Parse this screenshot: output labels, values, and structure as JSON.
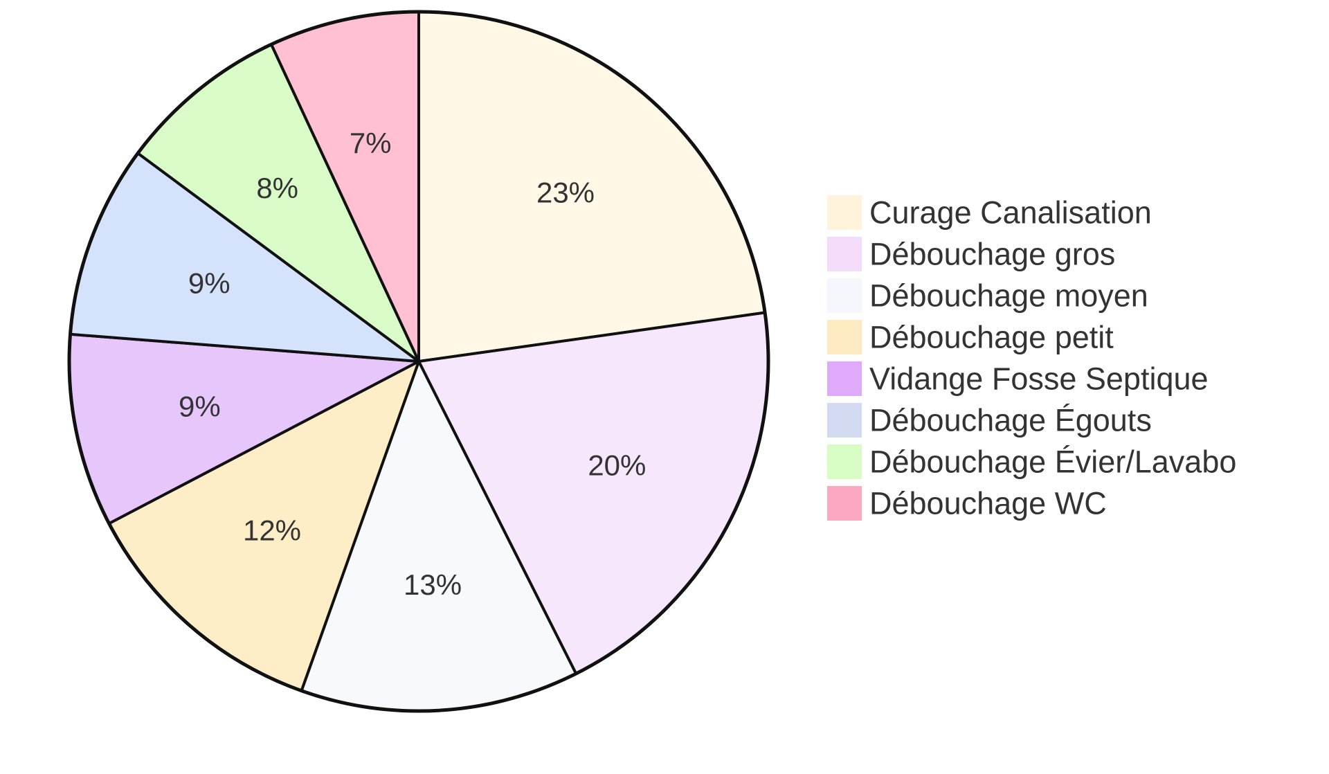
{
  "chart_data": {
    "type": "pie",
    "title": "",
    "legend_position": "right",
    "start_angle": "12 o'clock",
    "direction": "clockwise",
    "slices": [
      {
        "name": "Curage Canalisation",
        "value": 23,
        "label": "23%",
        "color": "#fff8e7"
      },
      {
        "name": "Débouchage gros",
        "value": 20,
        "label": "20%",
        "color": "#f6e7fc"
      },
      {
        "name": "Débouchage moyen",
        "value": 13,
        "label": "13%",
        "color": "#f8f9fd"
      },
      {
        "name": "Débouchage petit",
        "value": 12,
        "label": "12%",
        "color": "#feeec8"
      },
      {
        "name": "Vidange Fosse Septique",
        "value": 9,
        "label": "9%",
        "color": "#e7c6fc"
      },
      {
        "name": "Débouchage Égouts",
        "value": 9,
        "label": "9%",
        "color": "#d5e2fb"
      },
      {
        "name": "Débouchage Évier/Lavabo",
        "value": 8,
        "label": "8%",
        "color": "#d8fbc8"
      },
      {
        "name": "Débouchage WC",
        "value": 7,
        "label": "7%",
        "color": "#ffc0d2"
      }
    ],
    "legend_order": [
      "Curage Canalisation",
      "Débouchage gros",
      "Débouchage moyen",
      "Débouchage petit",
      "Vidange Fosse Septique",
      "Débouchage Égouts",
      "Débouchage Évier/Lavabo",
      "Débouchage WC"
    ],
    "legend_colors": [
      "#fff3dc",
      "#f3dcfa",
      "#f6f7fc",
      "#feeac0",
      "#dfaaf9",
      "#d3dbf3",
      "#d7fdc4",
      "#fda8c3"
    ],
    "outline_color": "#111111"
  }
}
